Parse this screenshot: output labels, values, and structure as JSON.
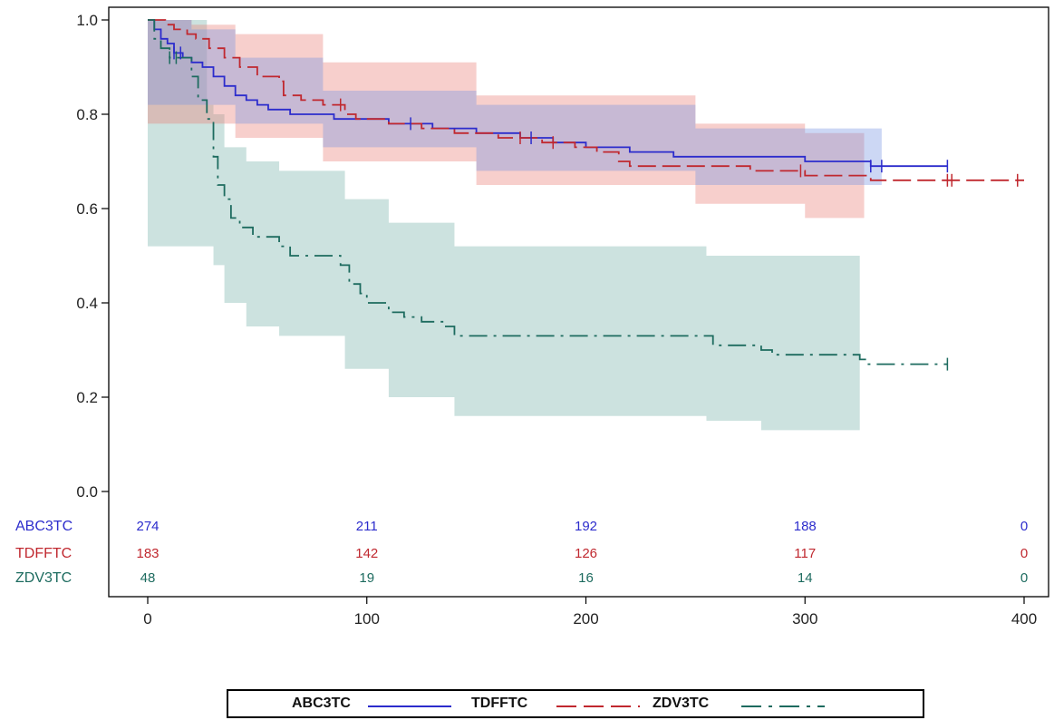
{
  "chart_data": {
    "type": "line",
    "title": "",
    "xlabel": "",
    "ylabel": "",
    "xlim": [
      0,
      400
    ],
    "ylim": [
      0,
      1.0
    ],
    "x_ticks": [
      "0",
      "100",
      "200",
      "300",
      "400"
    ],
    "y_ticks": [
      "0.0",
      "0.2",
      "0.4",
      "0.6",
      "0.8",
      "1.0"
    ],
    "series": [
      {
        "name": "ABC3TC",
        "color": "#2c2ccc",
        "style": "solid",
        "steps": [
          [
            0,
            1.0
          ],
          [
            3,
            0.98
          ],
          [
            6,
            0.96
          ],
          [
            9,
            0.95
          ],
          [
            12,
            0.93
          ],
          [
            16,
            0.92
          ],
          [
            20,
            0.91
          ],
          [
            25,
            0.9
          ],
          [
            30,
            0.88
          ],
          [
            35,
            0.86
          ],
          [
            40,
            0.84
          ],
          [
            45,
            0.83
          ],
          [
            50,
            0.82
          ],
          [
            55,
            0.81
          ],
          [
            65,
            0.8
          ],
          [
            75,
            0.8
          ],
          [
            85,
            0.79
          ],
          [
            95,
            0.79
          ],
          [
            110,
            0.78
          ],
          [
            130,
            0.77
          ],
          [
            150,
            0.76
          ],
          [
            170,
            0.75
          ],
          [
            185,
            0.74
          ],
          [
            200,
            0.73
          ],
          [
            220,
            0.72
          ],
          [
            240,
            0.71
          ],
          [
            280,
            0.71
          ],
          [
            300,
            0.7
          ],
          [
            330,
            0.69
          ],
          [
            365,
            0.69
          ]
        ],
        "censor_x": [
          12,
          15,
          120,
          175,
          330,
          335,
          365
        ],
        "ci_lower": [
          [
            0,
            0.82
          ],
          [
            20,
            0.82
          ],
          [
            40,
            0.78
          ],
          [
            80,
            0.73
          ],
          [
            150,
            0.68
          ],
          [
            250,
            0.65
          ],
          [
            335,
            0.63
          ]
        ],
        "ci_upper": [
          [
            0,
            1.0
          ],
          [
            20,
            0.98
          ],
          [
            40,
            0.92
          ],
          [
            80,
            0.85
          ],
          [
            150,
            0.82
          ],
          [
            250,
            0.77
          ],
          [
            335,
            0.76
          ]
        ]
      },
      {
        "name": "TDFFTC",
        "color": "#c0282f",
        "style": "dashed",
        "steps": [
          [
            0,
            1.0
          ],
          [
            8,
            0.99
          ],
          [
            12,
            0.98
          ],
          [
            18,
            0.97
          ],
          [
            22,
            0.96
          ],
          [
            28,
            0.94
          ],
          [
            35,
            0.92
          ],
          [
            42,
            0.9
          ],
          [
            50,
            0.88
          ],
          [
            60,
            0.87
          ],
          [
            62,
            0.84
          ],
          [
            70,
            0.83
          ],
          [
            80,
            0.82
          ],
          [
            90,
            0.8
          ],
          [
            95,
            0.79
          ],
          [
            110,
            0.78
          ],
          [
            125,
            0.77
          ],
          [
            140,
            0.76
          ],
          [
            160,
            0.75
          ],
          [
            180,
            0.74
          ],
          [
            195,
            0.73
          ],
          [
            205,
            0.72
          ],
          [
            215,
            0.7
          ],
          [
            220,
            0.69
          ],
          [
            255,
            0.69
          ],
          [
            275,
            0.68
          ],
          [
            300,
            0.67
          ],
          [
            330,
            0.66
          ],
          [
            400,
            0.66
          ]
        ],
        "censor_x": [
          88,
          170,
          185,
          298,
          365,
          367,
          397
        ],
        "ci_lower": [
          [
            0,
            0.78
          ],
          [
            20,
            0.78
          ],
          [
            40,
            0.75
          ],
          [
            80,
            0.7
          ],
          [
            150,
            0.65
          ],
          [
            250,
            0.61
          ],
          [
            300,
            0.58
          ],
          [
            327,
            0.57
          ]
        ],
        "ci_upper": [
          [
            0,
            1.0
          ],
          [
            20,
            0.99
          ],
          [
            40,
            0.97
          ],
          [
            80,
            0.91
          ],
          [
            150,
            0.84
          ],
          [
            250,
            0.78
          ],
          [
            300,
            0.76
          ],
          [
            327,
            0.75
          ]
        ]
      },
      {
        "name": "ZDV3TC",
        "color": "#1d6b5f",
        "style": "dashdot",
        "steps": [
          [
            0,
            1.0
          ],
          [
            3,
            0.96
          ],
          [
            6,
            0.94
          ],
          [
            10,
            0.92
          ],
          [
            16,
            0.92
          ],
          [
            20,
            0.88
          ],
          [
            23,
            0.83
          ],
          [
            27,
            0.79
          ],
          [
            30,
            0.71
          ],
          [
            32,
            0.65
          ],
          [
            35,
            0.62
          ],
          [
            38,
            0.58
          ],
          [
            42,
            0.56
          ],
          [
            48,
            0.54
          ],
          [
            60,
            0.52
          ],
          [
            65,
            0.5
          ],
          [
            80,
            0.5
          ],
          [
            88,
            0.48
          ],
          [
            92,
            0.44
          ],
          [
            97,
            0.42
          ],
          [
            100,
            0.4
          ],
          [
            110,
            0.38
          ],
          [
            117,
            0.37
          ],
          [
            125,
            0.36
          ],
          [
            135,
            0.35
          ],
          [
            140,
            0.33
          ],
          [
            255,
            0.33
          ],
          [
            258,
            0.31
          ],
          [
            280,
            0.3
          ],
          [
            285,
            0.29
          ],
          [
            300,
            0.29
          ],
          [
            325,
            0.28
          ],
          [
            328,
            0.27
          ],
          [
            365,
            0.27
          ]
        ],
        "censor_x": [
          10,
          13,
          365
        ],
        "ci_lower": [
          [
            0,
            0.52
          ],
          [
            27,
            0.52
          ],
          [
            30,
            0.48
          ],
          [
            35,
            0.4
          ],
          [
            45,
            0.35
          ],
          [
            60,
            0.33
          ],
          [
            90,
            0.26
          ],
          [
            110,
            0.2
          ],
          [
            140,
            0.16
          ],
          [
            255,
            0.15
          ],
          [
            280,
            0.13
          ],
          [
            325,
            0.13
          ]
        ],
        "ci_upper": [
          [
            0,
            1.0
          ],
          [
            27,
            0.82
          ],
          [
            30,
            0.8
          ],
          [
            35,
            0.73
          ],
          [
            45,
            0.7
          ],
          [
            60,
            0.68
          ],
          [
            90,
            0.62
          ],
          [
            110,
            0.57
          ],
          [
            140,
            0.52
          ],
          [
            255,
            0.5
          ],
          [
            325,
            0.49
          ]
        ]
      }
    ],
    "at_risk": {
      "x": [
        0,
        100,
        200,
        300,
        400
      ],
      "rows": [
        {
          "label": "ABC3TC",
          "color": "#2c2ccc",
          "values": [
            "274",
            "211",
            "192",
            "188",
            "0"
          ]
        },
        {
          "label": "TDFFTC",
          "color": "#c0282f",
          "values": [
            "183",
            "142",
            "126",
            "117",
            "0"
          ]
        },
        {
          "label": "ZDV3TC",
          "color": "#1d6b5f",
          "values": [
            "48",
            "19",
            "16",
            "14",
            "0"
          ]
        }
      ]
    },
    "grid": false,
    "legend_position": "bottom"
  },
  "legend": {
    "items": [
      {
        "label": "ABC3TC",
        "color": "#2c2ccc",
        "style": "solid"
      },
      {
        "label": "TDFFTC",
        "color": "#c0282f",
        "style": "dashed"
      },
      {
        "label": "ZDV3TC",
        "color": "#1d6b5f",
        "style": "dashdot"
      }
    ]
  }
}
